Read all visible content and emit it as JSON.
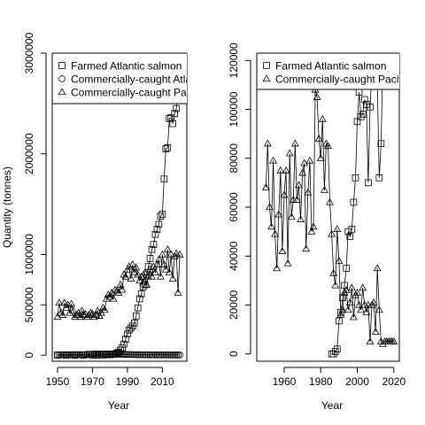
{
  "chart_data": [
    {
      "type": "scatter",
      "title": "",
      "xlabel": "Year",
      "ylabel": "Quantity (tonnes)",
      "xlim": [
        1947,
        2024
      ],
      "ylim": [
        -60000,
        3000000
      ],
      "x_ticks": [
        1950,
        1970,
        1990,
        2010
      ],
      "y_ticks": [
        0,
        500000,
        1000000,
        2000000,
        3000000
      ],
      "y_tick_labels": [
        "0",
        "500000",
        "1000000",
        "2000000",
        "3000000"
      ],
      "legend_placement": "top-left, clipped by the plot box",
      "series": [
        {
          "name": "Farmed Atlantic salmon",
          "marker": "square",
          "x": [
            1950,
            1955,
            1960,
            1965,
            1970,
            1972,
            1974,
            1976,
            1978,
            1980,
            1981,
            1982,
            1983,
            1984,
            1985,
            1986,
            1987,
            1988,
            1989,
            1990,
            1991,
            1992,
            1993,
            1994,
            1995,
            1996,
            1997,
            1998,
            1999,
            2000,
            2001,
            2002,
            2003,
            2004,
            2005,
            2006,
            2007,
            2008,
            2009,
            2010,
            2011,
            2012,
            2013,
            2014,
            2015,
            2016,
            2017,
            2018,
            2019,
            2020
          ],
          "y": [
            0,
            0,
            0,
            0,
            0,
            0,
            1000,
            2000,
            4000,
            5000,
            8000,
            10000,
            14000,
            22000,
            30000,
            50000,
            75000,
            110000,
            160000,
            210000,
            250000,
            270000,
            290000,
            320000,
            390000,
            470000,
            560000,
            610000,
            680000,
            700000,
            800000,
            880000,
            960000,
            1050000,
            1100000,
            1200000,
            1250000,
            1300000,
            1380000,
            1400000,
            1750000,
            2050000,
            2060000,
            2350000,
            2360000,
            2300000,
            2400000,
            2450000,
            2600000,
            2650000
          ]
        },
        {
          "name": "Commercially-caught Atlantic salmon",
          "marker": "circle",
          "x": [
            1950,
            1951,
            1952,
            1953,
            1954,
            1955,
            1956,
            1957,
            1958,
            1959,
            1960,
            1961,
            1962,
            1963,
            1964,
            1965,
            1966,
            1967,
            1968,
            1969,
            1970,
            1971,
            1972,
            1973,
            1974,
            1975,
            1976,
            1977,
            1978,
            1979,
            1980,
            1981,
            1982,
            1983,
            1984,
            1985,
            1986,
            1987,
            1988,
            1989,
            1990,
            1991,
            1992,
            1993,
            1994,
            1995,
            1996,
            1997,
            1998,
            1999,
            2000,
            2001,
            2002,
            2003,
            2004,
            2005,
            2006,
            2007,
            2008,
            2009,
            2010,
            2011,
            2012,
            2013,
            2014,
            2015,
            2016,
            2017,
            2018,
            2019,
            2020
          ],
          "y": [
            5000,
            5000,
            5000,
            5000,
            5000,
            5000,
            5000,
            5000,
            5000,
            5000,
            5000,
            5000,
            5000,
            5000,
            5000,
            6000,
            8000,
            9000,
            9000,
            10000,
            10000,
            11000,
            11000,
            12000,
            12000,
            12000,
            12000,
            12000,
            12000,
            12000,
            12000,
            11000,
            11000,
            10000,
            10000,
            10000,
            10000,
            9000,
            9000,
            8000,
            8000,
            7000,
            7000,
            6000,
            6000,
            5000,
            5000,
            5000,
            5000,
            4000,
            4000,
            4000,
            4000,
            3000,
            3000,
            3000,
            3000,
            3000,
            3000,
            3000,
            3000,
            3000,
            3000,
            3000,
            3000,
            2000,
            2000,
            2000,
            2000,
            2000,
            2000
          ]
        },
        {
          "name": "Commercially-caught Pacific salmon",
          "marker": "triangle",
          "x": [
            1950,
            1951,
            1952,
            1953,
            1954,
            1955,
            1956,
            1957,
            1958,
            1959,
            1960,
            1961,
            1962,
            1963,
            1964,
            1965,
            1966,
            1967,
            1968,
            1969,
            1970,
            1971,
            1972,
            1973,
            1974,
            1975,
            1976,
            1977,
            1978,
            1979,
            1980,
            1981,
            1982,
            1983,
            1984,
            1985,
            1986,
            1987,
            1988,
            1989,
            1990,
            1991,
            1992,
            1993,
            1994,
            1995,
            1996,
            1997,
            1998,
            1999,
            2000,
            2001,
            2002,
            2003,
            2004,
            2005,
            2006,
            2007,
            2008,
            2009,
            2010,
            2011,
            2012,
            2013,
            2014,
            2015,
            2016,
            2017,
            2018,
            2019,
            2020
          ],
          "y": [
            380000,
            520000,
            420000,
            400000,
            520000,
            470000,
            500000,
            420000,
            510000,
            440000,
            380000,
            400000,
            420000,
            380000,
            440000,
            400000,
            410000,
            380000,
            400000,
            420000,
            410000,
            380000,
            400000,
            440000,
            390000,
            420000,
            470000,
            450000,
            560000,
            600000,
            580000,
            620000,
            560000,
            650000,
            640000,
            620000,
            700000,
            650000,
            800000,
            780000,
            850000,
            880000,
            760000,
            900000,
            820000,
            870000,
            800000,
            740000,
            780000,
            720000,
            820000,
            700000,
            780000,
            850000,
            780000,
            880000,
            820000,
            900000,
            950000,
            780000,
            1000000,
            900000,
            850000,
            1050000,
            820000,
            1000000,
            760000,
            980000,
            1010000,
            620000,
            1000000
          ]
        }
      ]
    },
    {
      "type": "scatter",
      "title": "",
      "xlabel": "Year",
      "ylabel": "",
      "xlim": [
        1945,
        2023
      ],
      "ylim": [
        -3000,
        123000
      ],
      "x_ticks": [
        1960,
        1980,
        2000,
        2020
      ],
      "y_ticks": [
        0,
        20000,
        40000,
        60000,
        80000,
        100000,
        120000
      ],
      "y_tick_labels": [
        "0",
        "20000",
        "40000",
        "60000",
        "80000",
        "100000",
        "120000"
      ],
      "legend_placement": "top-left, clipped by the plot box",
      "series": [
        {
          "name": "Farmed Atlantic salmon",
          "marker": "square",
          "x": [
            1986,
            1987,
            1988,
            1989,
            1990,
            1991,
            1992,
            1993,
            1994,
            1995,
            1996,
            1997,
            1998,
            1999,
            2000,
            2001,
            2002,
            2003,
            2004,
            2005,
            2006,
            2007,
            2008,
            2009,
            2010,
            2011,
            2012,
            2013,
            2014,
            2015,
            2016,
            2017,
            2018,
            2019,
            2020
          ],
          "y": [
            0,
            0,
            1000,
            2000,
            13500,
            17000,
            23000,
            28000,
            35000,
            50000,
            48000,
            51000,
            62000,
            72000,
            95000,
            107000,
            97000,
            98000,
            104000,
            102000,
            70000,
            101000,
            115000,
            120000,
            120000,
            110000,
            72000,
            86000,
            120000,
            120000,
            120000,
            120000,
            120000,
            120000,
            120000
          ]
        },
        {
          "name": "Commercially-caught Pacific salmon",
          "marker": "triangle",
          "x": [
            1950,
            1951,
            1952,
            1953,
            1954,
            1955,
            1956,
            1957,
            1958,
            1959,
            1960,
            1961,
            1962,
            1963,
            1964,
            1965,
            1966,
            1967,
            1968,
            1969,
            1970,
            1971,
            1972,
            1973,
            1974,
            1975,
            1976,
            1977,
            1978,
            1979,
            1980,
            1981,
            1982,
            1983,
            1984,
            1985,
            1986,
            1987,
            1988,
            1989,
            1990,
            1991,
            1992,
            1993,
            1994,
            1995,
            1996,
            1997,
            1998,
            1999,
            2000,
            2001,
            2002,
            2003,
            2004,
            2005,
            2006,
            2007,
            2008,
            2009,
            2010,
            2011,
            2012,
            2013,
            2014,
            2015,
            2016,
            2017,
            2018,
            2019,
            2020
          ],
          "y": [
            68000,
            86000,
            60000,
            52000,
            79000,
            49000,
            35000,
            57000,
            75000,
            42000,
            65000,
            75000,
            37000,
            82000,
            56000,
            63000,
            86000,
            63000,
            69000,
            55000,
            74000,
            78000,
            43000,
            66000,
            79000,
            50000,
            52000,
            108000,
            105000,
            88000,
            80000,
            96000,
            67000,
            86000,
            85000,
            62000,
            49000,
            33000,
            28000,
            51000,
            38000,
            16000,
            18000,
            25000,
            26000,
            18000,
            21000,
            27000,
            15000,
            24000,
            25000,
            20000,
            18000,
            27000,
            20000,
            17000,
            20000,
            5000,
            20000,
            21000,
            9000,
            35000,
            18000,
            5000,
            4000,
            5000,
            5000,
            5000,
            5000,
            5000,
            5000
          ]
        }
      ]
    }
  ]
}
